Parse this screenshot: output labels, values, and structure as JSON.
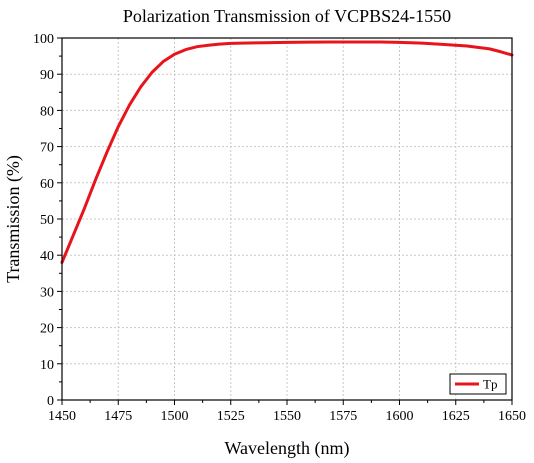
{
  "chart_data": {
    "type": "line",
    "title": "Polarization Transmission of VCPBS24-1550",
    "xlabel": "Wavelength (nm)",
    "ylabel": "Transmission (%)",
    "xlim": [
      1450,
      1650
    ],
    "ylim": [
      0,
      100
    ],
    "xticks": [
      1450,
      1475,
      1500,
      1525,
      1550,
      1575,
      1600,
      1625,
      1650
    ],
    "yticks": [
      0,
      10,
      20,
      30,
      40,
      50,
      60,
      70,
      80,
      90,
      100
    ],
    "grid": true,
    "legend_position": "bottom-right",
    "series": [
      {
        "name": "Tp",
        "color": "#e8141b",
        "x": [
          1450,
          1455,
          1460,
          1465,
          1470,
          1475,
          1480,
          1485,
          1490,
          1495,
          1500,
          1505,
          1510,
          1515,
          1520,
          1525,
          1530,
          1540,
          1550,
          1560,
          1570,
          1580,
          1590,
          1600,
          1610,
          1620,
          1630,
          1640,
          1645,
          1650
        ],
        "y": [
          38,
          45.5,
          53,
          61,
          68.5,
          75.5,
          81.5,
          86.5,
          90.5,
          93.5,
          95.5,
          96.8,
          97.6,
          98.0,
          98.3,
          98.5,
          98.6,
          98.7,
          98.8,
          98.85,
          98.9,
          98.9,
          98.9,
          98.8,
          98.6,
          98.2,
          97.8,
          97.0,
          96.2,
          95.3
        ]
      }
    ]
  }
}
